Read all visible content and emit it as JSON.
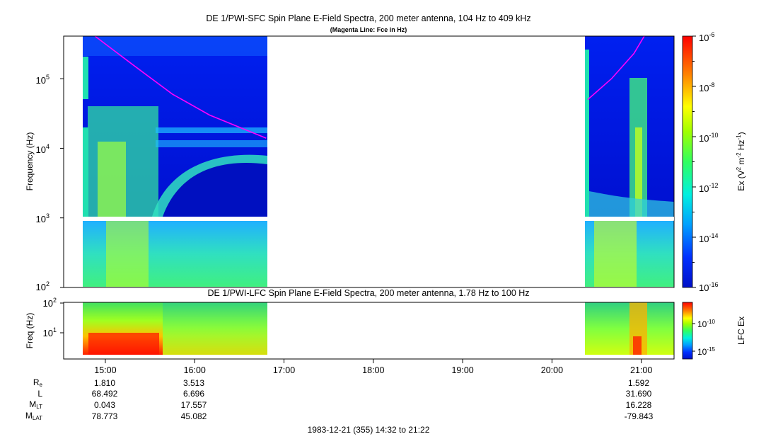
{
  "chart_data": [
    {
      "type": "heatmap",
      "title": "DE 1/PWI-SFC  Spin Plane E-Field Spectra, 200 meter antenna, 104 Hz to 409 kHz",
      "subtitle": "(Magenta Line: Fce in Hz)",
      "ylabel": "Frequency (Hz)",
      "yscale": "log",
      "ylim": [
        100,
        409000
      ],
      "y_ticks": [
        "10^2",
        "10^3",
        "10^4",
        "10^5"
      ],
      "colorbar": {
        "label": "Ex (V^2 m^-2 Hz^-1)",
        "scale": "log",
        "range": [
          1e-16,
          1e-06
        ],
        "ticks": [
          "10^-6",
          "10^-8",
          "10^-10",
          "10^-12",
          "10^-14",
          "10^-16"
        ]
      },
      "data_intervals": [
        [
          "14:45",
          "16:48"
        ],
        [
          "20:24",
          "21:22"
        ]
      ],
      "fce_line": {
        "name": "Fce",
        "color": "#ff00ff",
        "segments": [
          {
            "time": [
              "14:53",
              "15:20",
              "15:45",
              "16:10",
              "16:48"
            ],
            "hz": [
              409000,
              150000,
              60000,
              30000,
              14000
            ]
          },
          {
            "time": [
              "20:24",
              "20:40",
              "20:55",
              "21:02"
            ],
            "hz": [
              50000,
              100000,
              230000,
              409000
            ]
          }
        ]
      }
    },
    {
      "type": "heatmap",
      "title": "DE 1/PWI-LFC  Spin Plane E-Field Spectra, 200 meter antenna, 1.78 Hz to 100 Hz",
      "ylabel": "Freq (Hz)",
      "yscale": "log",
      "ylim": [
        1.78,
        100
      ],
      "y_ticks": [
        "10^1",
        "10^2"
      ],
      "colorbar": {
        "label": "LFC Ex",
        "scale": "log",
        "ticks": [
          "10^-10",
          "10^-15"
        ]
      },
      "data_intervals": [
        [
          "14:45",
          "16:48"
        ],
        [
          "20:24",
          "21:22"
        ]
      ]
    }
  ],
  "x_axis": {
    "ticks": [
      "15:00",
      "16:00",
      "17:00",
      "18:00",
      "19:00",
      "20:00",
      "21:00"
    ],
    "range": [
      "14:32",
      "21:22"
    ]
  },
  "ephemeris": {
    "labels": {
      "re": "R",
      "re_sub": "e",
      "l": "L",
      "mlt": "M",
      "mlt_sub": "LT",
      "mlat": "M",
      "mlat_sub": "LAT"
    },
    "columns": [
      {
        "time": "15:00",
        "re": "1.810",
        "l": "68.492",
        "mlt": "0.043",
        "mlat": "78.773"
      },
      {
        "time": "16:00",
        "re": "3.513",
        "l": "6.696",
        "mlt": "17.557",
        "mlat": "45.082"
      },
      {
        "time": "21:00",
        "re": "1.592",
        "l": "31.690",
        "mlt": "16.228",
        "mlat": "-79.843"
      }
    ]
  },
  "footer": "1983-12-21 (355) 14:32 to 21:22",
  "colors": {
    "background": "#0018e0",
    "fce": "#ff00ff"
  }
}
